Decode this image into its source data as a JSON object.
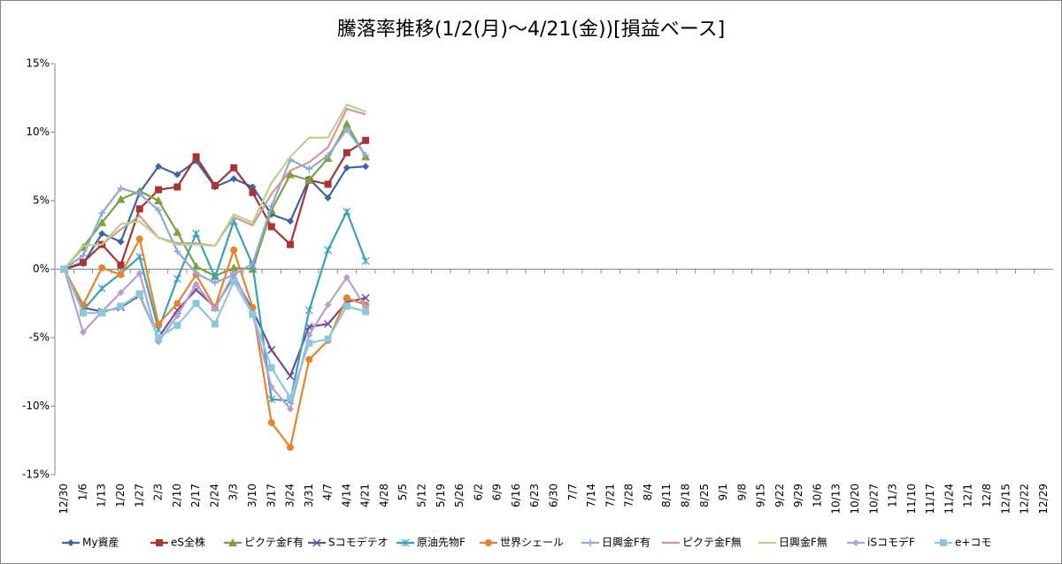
{
  "chart_data": {
    "type": "line",
    "title": "騰落率推移(1/2(月)～4/21(金))[損益ベース]",
    "categories": [
      "12/30",
      "1/6",
      "1/13",
      "1/20",
      "1/27",
      "2/3",
      "2/10",
      "2/17",
      "2/24",
      "3/3",
      "3/10",
      "3/17",
      "3/24",
      "3/31",
      "4/7",
      "4/14",
      "4/21",
      "4/28",
      "5/5",
      "5/12",
      "5/19",
      "5/26",
      "6/2",
      "6/9",
      "6/16",
      "6/23",
      "6/30",
      "7/7",
      "7/14",
      "7/21",
      "7/28",
      "8/4",
      "8/11",
      "8/18",
      "8/25",
      "9/1",
      "9/8",
      "9/15",
      "9/22",
      "9/29",
      "10/6",
      "10/13",
      "10/20",
      "10/27",
      "11/3",
      "11/10",
      "11/17",
      "11/24",
      "12/1",
      "12/8",
      "12/15",
      "12/22",
      "12/29"
    ],
    "ylim": [
      -15,
      15
    ],
    "yticks": [
      {
        "value": 15,
        "label": "15%"
      },
      {
        "value": 10,
        "label": "10%"
      },
      {
        "value": 5,
        "label": "5%"
      },
      {
        "value": 0,
        "label": "0%"
      },
      {
        "value": -5,
        "label": "-5%"
      },
      {
        "value": -10,
        "label": "-10%"
      },
      {
        "value": -15,
        "label": "-15%"
      }
    ],
    "grid": false,
    "legend": "bottom",
    "series": [
      {
        "name": "My資産",
        "color": "#3e64a6",
        "marker": "diamond",
        "values": [
          0,
          0.4,
          2.6,
          2.0,
          5.6,
          7.5,
          6.9,
          7.9,
          6.0,
          6.6,
          6.0,
          4.0,
          3.5,
          6.6,
          5.2,
          7.4,
          7.5,
          null,
          null,
          null,
          null,
          null,
          null,
          null,
          null,
          null,
          null,
          null,
          null,
          null,
          null,
          null,
          null,
          null,
          null,
          null,
          null,
          null,
          null,
          null,
          null,
          null,
          null,
          null,
          null,
          null,
          null,
          null,
          null,
          null,
          null,
          null,
          null
        ]
      },
      {
        "name": "eS全株",
        "color": "#a83434",
        "marker": "square",
        "values": [
          0,
          0.5,
          1.8,
          0.3,
          4.4,
          5.8,
          6.0,
          8.2,
          6.1,
          7.4,
          5.6,
          3.1,
          1.8,
          6.5,
          6.2,
          8.5,
          9.4,
          null,
          null,
          null,
          null,
          null,
          null,
          null,
          null,
          null,
          null,
          null,
          null,
          null,
          null,
          null,
          null,
          null,
          null,
          null,
          null,
          null,
          null,
          null,
          null,
          null,
          null,
          null,
          null,
          null,
          null,
          null,
          null,
          null,
          null,
          null,
          null
        ]
      },
      {
        "name": "ピクテ金F有",
        "color": "#7ba23f",
        "marker": "triangle",
        "values": [
          0,
          1.6,
          3.4,
          5.1,
          5.7,
          5.0,
          2.7,
          0.2,
          -0.5,
          0.1,
          0.0,
          4.3,
          6.9,
          6.5,
          8.1,
          10.6,
          8.2,
          null,
          null,
          null,
          null,
          null,
          null,
          null,
          null,
          null,
          null,
          null,
          null,
          null,
          null,
          null,
          null,
          null,
          null,
          null,
          null,
          null,
          null,
          null,
          null,
          null,
          null,
          null,
          null,
          null,
          null,
          null,
          null,
          null,
          null,
          null,
          null
        ]
      },
      {
        "name": "Sコモデテオ",
        "color": "#6b4d9b",
        "marker": "x",
        "values": [
          0,
          -2.8,
          -3.1,
          -2.8,
          -1.9,
          -5.0,
          -3.0,
          -1.5,
          -2.8,
          -0.5,
          -3.0,
          -5.9,
          -7.8,
          -4.2,
          -4.0,
          -2.4,
          -2.1,
          null,
          null,
          null,
          null,
          null,
          null,
          null,
          null,
          null,
          null,
          null,
          null,
          null,
          null,
          null,
          null,
          null,
          null,
          null,
          null,
          null,
          null,
          null,
          null,
          null,
          null,
          null,
          null,
          null,
          null,
          null,
          null,
          null,
          null,
          null,
          null
        ]
      },
      {
        "name": "原油先物F",
        "color": "#3aa0b8",
        "marker": "star",
        "values": [
          0,
          -3.0,
          -1.4,
          -0.3,
          0.9,
          -4.4,
          -0.7,
          2.6,
          -0.6,
          3.5,
          0.3,
          -9.5,
          -9.6,
          -3.0,
          1.4,
          4.2,
          0.6,
          null,
          null,
          null,
          null,
          null,
          null,
          null,
          null,
          null,
          null,
          null,
          null,
          null,
          null,
          null,
          null,
          null,
          null,
          null,
          null,
          null,
          null,
          null,
          null,
          null,
          null,
          null,
          null,
          null,
          null,
          null,
          null,
          null,
          null,
          null,
          null
        ]
      },
      {
        "name": "世界シェール",
        "color": "#e8822e",
        "marker": "circle",
        "values": [
          0,
          -2.6,
          0.1,
          -0.4,
          2.2,
          -4.0,
          -2.5,
          -0.4,
          -2.8,
          1.4,
          -2.8,
          -11.2,
          -13.0,
          -6.6,
          -5.2,
          -2.1,
          -2.6,
          null,
          null,
          null,
          null,
          null,
          null,
          null,
          null,
          null,
          null,
          null,
          null,
          null,
          null,
          null,
          null,
          null,
          null,
          null,
          null,
          null,
          null,
          null,
          null,
          null,
          null,
          null,
          null,
          null,
          null,
          null,
          null,
          null,
          null,
          null,
          null
        ]
      },
      {
        "name": "日興金F有",
        "color": "#8ea8d8",
        "marker": "plus",
        "values": [
          0,
          1.0,
          4.1,
          5.9,
          5.5,
          4.3,
          1.3,
          -0.3,
          -1.0,
          -0.4,
          0.4,
          4.6,
          8.0,
          7.3,
          8.3,
          10.2,
          8.3,
          null,
          null,
          null,
          null,
          null,
          null,
          null,
          null,
          null,
          null,
          null,
          null,
          null,
          null,
          null,
          null,
          null,
          null,
          null,
          null,
          null,
          null,
          null,
          null,
          null,
          null,
          null,
          null,
          null,
          null,
          null,
          null,
          null,
          null,
          null,
          null
        ]
      },
      {
        "name": "ピクテ金F無",
        "color": "#d99595",
        "marker": "none",
        "values": [
          0,
          1.7,
          1.8,
          2.9,
          3.9,
          2.3,
          1.9,
          1.9,
          1.7,
          3.8,
          3.2,
          5.5,
          7.2,
          7.8,
          8.9,
          11.7,
          11.3,
          null,
          null,
          null,
          null,
          null,
          null,
          null,
          null,
          null,
          null,
          null,
          null,
          null,
          null,
          null,
          null,
          null,
          null,
          null,
          null,
          null,
          null,
          null,
          null,
          null,
          null,
          null,
          null,
          null,
          null,
          null,
          null,
          null,
          null,
          null,
          null
        ]
      },
      {
        "name": "日興金F無",
        "color": "#b5d48a",
        "marker": "none",
        "values": [
          0,
          1.7,
          1.8,
          3.3,
          3.5,
          2.3,
          1.8,
          1.8,
          1.7,
          4.0,
          3.4,
          6.3,
          8.2,
          9.6,
          9.6,
          12.0,
          11.5,
          null,
          null,
          null,
          null,
          null,
          null,
          null,
          null,
          null,
          null,
          null,
          null,
          null,
          null,
          null,
          null,
          null,
          null,
          null,
          null,
          null,
          null,
          null,
          null,
          null,
          null,
          null,
          null,
          null,
          null,
          null,
          null,
          null,
          null,
          null,
          null
        ]
      },
      {
        "name": "iSコモデF",
        "color": "#b4a0d0",
        "marker": "diamond",
        "values": [
          0,
          -4.6,
          -3.1,
          -1.7,
          -0.3,
          -5.3,
          -3.4,
          -1.1,
          -2.9,
          -0.3,
          -3.3,
          -8.6,
          -10.2,
          -4.8,
          -2.6,
          -0.6,
          -2.8,
          null,
          null,
          null,
          null,
          null,
          null,
          null,
          null,
          null,
          null,
          null,
          null,
          null,
          null,
          null,
          null,
          null,
          null,
          null,
          null,
          null,
          null,
          null,
          null,
          null,
          null,
          null,
          null,
          null,
          null,
          null,
          null,
          null,
          null,
          null,
          null
        ]
      },
      {
        "name": "e+コモ",
        "color": "#8cc8d8",
        "marker": "square",
        "values": [
          0,
          -3.2,
          -3.2,
          -2.7,
          -1.8,
          -5.0,
          -4.1,
          -2.5,
          -4.0,
          -0.9,
          -3.3,
          -7.2,
          -9.4,
          -5.4,
          -5.1,
          -2.7,
          -3.1,
          null,
          null,
          null,
          null,
          null,
          null,
          null,
          null,
          null,
          null,
          null,
          null,
          null,
          null,
          null,
          null,
          null,
          null,
          null,
          null,
          null,
          null,
          null,
          null,
          null,
          null,
          null,
          null,
          null,
          null,
          null,
          null,
          null,
          null,
          null,
          null
        ]
      }
    ]
  }
}
